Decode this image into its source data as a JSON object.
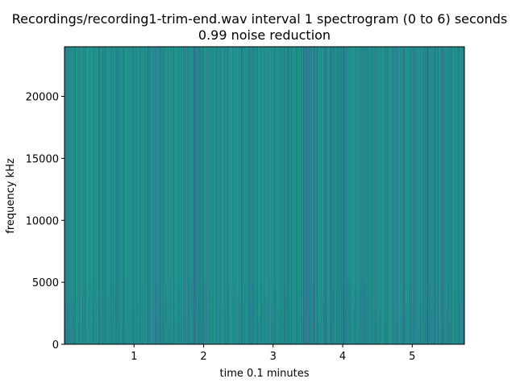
{
  "chart_data": {
    "type": "heatmap",
    "title": "Recordings/recording1-trim-end.wav interval 1 spectrogram (0 to 6) seconds",
    "subtitle": "0.99 noise reduction",
    "xlabel": "time 0.1 minutes",
    "ylabel": "frequency kHz",
    "xlim": [
      0,
      5.75
    ],
    "ylim": [
      0,
      24000
    ],
    "x_ticks": [
      1,
      2,
      3,
      4,
      5
    ],
    "x_tick_labels": [
      "1",
      "2",
      "3",
      "4",
      "5"
    ],
    "y_ticks": [
      0,
      5000,
      10000,
      15000,
      20000
    ],
    "y_tick_labels": [
      "0",
      "5000",
      "10000",
      "15000",
      "20000"
    ],
    "colormap": "viridis",
    "base_color": "#21908d",
    "grid": false,
    "legend": "none"
  }
}
